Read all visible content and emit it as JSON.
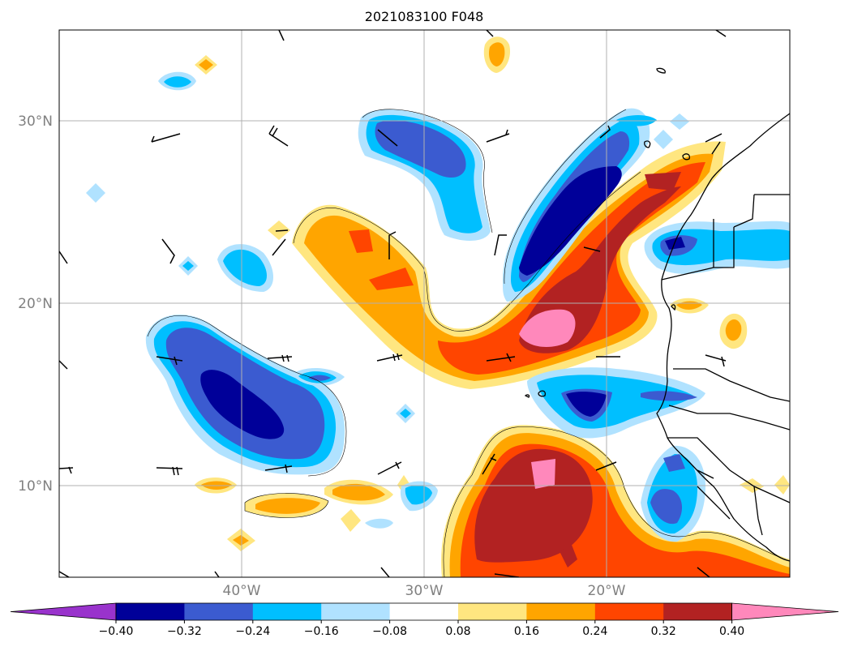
{
  "title": "2021083100 F048",
  "map": {
    "lon_range": [
      -50,
      -10
    ],
    "lat_range": [
      5,
      35
    ],
    "lat_ticks": [
      {
        "value": 10,
        "label": "10°N"
      },
      {
        "value": 20,
        "label": "20°N"
      },
      {
        "value": 30,
        "label": "30°N"
      }
    ],
    "lon_ticks": [
      {
        "value": -40,
        "label": "40°W"
      },
      {
        "value": -30,
        "label": "30°W"
      },
      {
        "value": -20,
        "label": "20°W"
      }
    ],
    "gridline_color": "#b0b0b0",
    "coastline_color": "#000000",
    "barb_color": "#000000"
  },
  "colorbar": {
    "levels": [
      "−0.40",
      "−0.32",
      "−0.24",
      "−0.16",
      "−0.08",
      "0.08",
      "0.16",
      "0.24",
      "0.32",
      "0.40"
    ],
    "colors": [
      "#9933cc",
      "#000099",
      "#3b5bd0",
      "#00bfff",
      "#b0e2ff",
      "#ffffff",
      "#ffe680",
      "#ffa500",
      "#ff4500",
      "#b22222",
      "#ff88bb"
    ],
    "extend": "both"
  }
}
